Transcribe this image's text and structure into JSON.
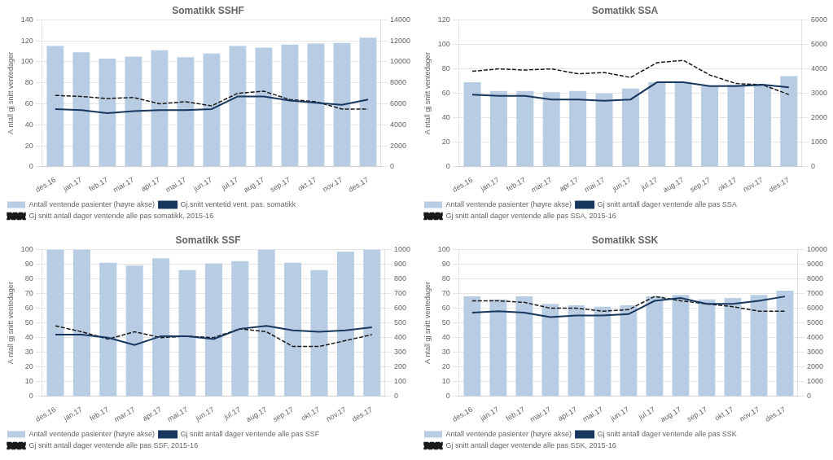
{
  "chart_data": [
    {
      "type": "bar",
      "title": "Somatikk SSHF",
      "categories": [
        "des.16",
        "jan.17",
        "feb.17",
        "mar.17",
        "apr.17",
        "mai.17",
        "jun.17",
        "jul.17",
        "aug.17",
        "sep.17",
        "okt.17",
        "nov.17",
        "des.17"
      ],
      "series": [
        {
          "name": "Antall ventende pasienter (høyre akse)",
          "type": "bar",
          "axis": "y2",
          "color": "#b8cce4",
          "values": [
            11500,
            10900,
            10300,
            10500,
            11100,
            10450,
            10800,
            11500,
            11350,
            11650,
            11750,
            11800,
            12300
          ]
        },
        {
          "name": "Gj.snitt ventetid vent. pas. somatikk",
          "type": "line",
          "line_style": "solid",
          "color": "#17375e",
          "values": [
            55,
            54,
            51,
            53,
            54,
            54,
            55,
            67,
            67,
            63,
            61,
            59,
            64
          ]
        },
        {
          "name": "Gj snitt antall dager ventende alle pas somatikk, 2015-16",
          "type": "line",
          "line_style": "dashed",
          "color": "#1a1a1a",
          "values": [
            68,
            67,
            65,
            66,
            60,
            62,
            58,
            70,
            72,
            64,
            62,
            55,
            55
          ]
        }
      ],
      "ylabel": "A ntall gj snitt ventedager",
      "ylim": [
        0,
        140
      ],
      "yticks": [
        0,
        20,
        40,
        60,
        80,
        100,
        120,
        140
      ],
      "y2lim": [
        0,
        14000
      ],
      "y2ticks": [
        0,
        2000,
        4000,
        6000,
        8000,
        10000,
        12000,
        14000
      ],
      "grid": true,
      "legend": "bottom"
    },
    {
      "type": "bar",
      "title": "Somatikk SSA",
      "categories": [
        "des.16",
        "jan.17",
        "feb.17",
        "mar.17",
        "apr.17",
        "mai.17",
        "jun.17",
        "jul.17",
        "aug.17",
        "sep.17",
        "okt.17",
        "nov.17",
        "des.17"
      ],
      "series": [
        {
          "name": "Antall ventende pasienter (høyre akse)",
          "type": "bar",
          "axis": "y2",
          "color": "#b8cce4",
          "values": [
            3450,
            3100,
            3100,
            3050,
            3100,
            3000,
            3200,
            3450,
            3450,
            3300,
            3350,
            3350,
            3700
          ]
        },
        {
          "name": "Gj snitt antall dager ventende alle pas SSA",
          "type": "line",
          "line_style": "solid",
          "color": "#17375e",
          "values": [
            59,
            58,
            58,
            55,
            55,
            54,
            55,
            69,
            69,
            66,
            66,
            67,
            65
          ]
        },
        {
          "name": "Gj snitt antall dager ventende alle pas SSA, 2015-16",
          "type": "line",
          "line_style": "dashed",
          "color": "#1a1a1a",
          "values": [
            78,
            80,
            79,
            80,
            76,
            77,
            73,
            85,
            87,
            75,
            68,
            67,
            59
          ]
        }
      ],
      "ylabel": "A ntall gj snitt ventedager",
      "ylim": [
        0,
        120
      ],
      "yticks": [
        0,
        20,
        40,
        60,
        80,
        100,
        120
      ],
      "y2lim": [
        0,
        6000
      ],
      "y2ticks": [
        0,
        1000,
        2000,
        3000,
        4000,
        5000,
        6000
      ],
      "grid": true,
      "legend": "bottom"
    },
    {
      "type": "bar",
      "title": "Somatikk SSF",
      "categories": [
        "des.16",
        "jan.17",
        "feb.17",
        "mar.17",
        "apr.17",
        "mai.17",
        "jun.17",
        "jul.17",
        "aug.17",
        "sep.17",
        "okt.17",
        "nov.17",
        "des.17"
      ],
      "series": [
        {
          "name": "Antall ventende pasienter (høyre akse)",
          "type": "bar",
          "axis": "y2",
          "color": "#b8cce4",
          "values": [
            1000,
            1000,
            910,
            890,
            940,
            860,
            905,
            920,
            1000,
            910,
            860,
            985,
            1000
          ]
        },
        {
          "name": "Gj snitt antall dager ventende alle pas SSF",
          "type": "line",
          "line_style": "solid",
          "color": "#17375e",
          "values": [
            42,
            42,
            40,
            35,
            41,
            41,
            39,
            46,
            48,
            45,
            44,
            45,
            47
          ]
        },
        {
          "name": "Gj snitt antall dager ventende alle pas SSF, 2015-16",
          "type": "line",
          "line_style": "dashed",
          "color": "#1a1a1a",
          "values": [
            48,
            44,
            39,
            44,
            40,
            41,
            40,
            46,
            44,
            34,
            34,
            38,
            42
          ]
        }
      ],
      "ylabel": "A ntall gj snitt ventedager",
      "ylim": [
        0,
        100
      ],
      "yticks": [
        0,
        10,
        20,
        30,
        40,
        50,
        60,
        70,
        80,
        90,
        100
      ],
      "y2lim": [
        0,
        1000
      ],
      "y2ticks": [
        0,
        100,
        200,
        300,
        400,
        500,
        600,
        700,
        800,
        900,
        1000
      ],
      "grid": true,
      "legend": "bottom"
    },
    {
      "type": "bar",
      "title": "Somatikk SSK",
      "categories": [
        "des.16",
        "jan.17",
        "feb.17",
        "mar.17",
        "apr.17",
        "mai.17",
        "jun.17",
        "jul.17",
        "aug.17",
        "sep.17",
        "okt.17",
        "nov.17",
        "des.17"
      ],
      "series": [
        {
          "name": "Antall ventende pasienter (høyre akse)",
          "type": "bar",
          "axis": "y2",
          "color": "#b8cce4",
          "values": [
            6800,
            6600,
            6800,
            6300,
            6200,
            6100,
            6200,
            6800,
            6900,
            6600,
            6700,
            6900,
            7200
          ]
        },
        {
          "name": "Gj snitt antall dager ventende alle pas SSK",
          "type": "line",
          "line_style": "solid",
          "color": "#17375e",
          "values": [
            57,
            58,
            57,
            54,
            55,
            55,
            56,
            65,
            67,
            63,
            63,
            65,
            68
          ]
        },
        {
          "name": "Gj snitt antall dager ventende alle pas SSK, 2015-16",
          "type": "line",
          "line_style": "dashed",
          "color": "#1a1a1a",
          "values": [
            65,
            65,
            64,
            60,
            60,
            58,
            59,
            68,
            65,
            63,
            61,
            58,
            58
          ]
        }
      ],
      "ylabel": "A ntall gj snitt ventedager",
      "ylim": [
        0,
        100
      ],
      "yticks": [
        0,
        10,
        20,
        30,
        40,
        50,
        60,
        70,
        80,
        90,
        100
      ],
      "y2lim": [
        0,
        10000
      ],
      "y2ticks": [
        0,
        1000,
        2000,
        3000,
        4000,
        5000,
        6000,
        7000,
        8000,
        9000,
        10000
      ],
      "grid": true,
      "legend": "bottom"
    }
  ]
}
